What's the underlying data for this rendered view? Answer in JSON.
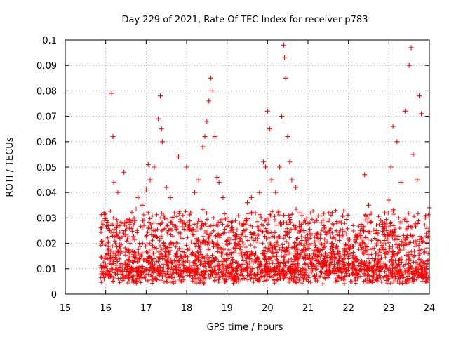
{
  "chart_data": {
    "type": "scatter",
    "title": "Day 229 of 2021, Rate Of TEC Index for receiver p783",
    "xlabel": "GPS time / hours",
    "ylabel": "ROTI / TECUs",
    "xlim": [
      15,
      24
    ],
    "ylim": [
      0,
      0.1
    ],
    "xticks": [
      "15",
      "16",
      "17",
      "18",
      "19",
      "20",
      "21",
      "22",
      "23",
      "24"
    ],
    "yticks": [
      "0",
      "0.01",
      "0.02",
      "0.03",
      "0.04",
      "0.05",
      "0.06",
      "0.07",
      "0.08",
      "0.09",
      "0.1"
    ],
    "grid": true,
    "legend": "none",
    "marker": "+",
    "color": "#ff0000",
    "series": [
      {
        "x": [
          15.9,
          16.0,
          16.1,
          16.15,
          16.18,
          16.2,
          16.3,
          16.35,
          16.45,
          16.5,
          16.6,
          16.7,
          16.8,
          16.9,
          17.0,
          17.05,
          17.1,
          17.2,
          17.3,
          17.35,
          17.38,
          17.4,
          17.5,
          17.6,
          17.7,
          17.8,
          17.9,
          18.0,
          18.1,
          18.2,
          18.3,
          18.4,
          18.45,
          18.5,
          18.55,
          18.6,
          18.65,
          18.7,
          18.75,
          18.8,
          18.9,
          19.0,
          19.1,
          19.2,
          19.3,
          19.4,
          19.5,
          19.6,
          19.7,
          19.8,
          19.9,
          19.95,
          20.0,
          20.05,
          20.1,
          20.2,
          20.3,
          20.35,
          20.4,
          20.42,
          20.45,
          20.5,
          20.55,
          20.6,
          20.7,
          20.8,
          20.9,
          21.0,
          21.1,
          21.2,
          21.3,
          21.4,
          21.5,
          21.6,
          21.7,
          21.8,
          21.9,
          22.0,
          22.1,
          22.2,
          22.3,
          22.4,
          22.5,
          22.6,
          22.7,
          22.8,
          22.9,
          23.0,
          23.05,
          23.1,
          23.2,
          23.3,
          23.4,
          23.5,
          23.55,
          23.6,
          23.7,
          23.75,
          23.8,
          23.9,
          24.0
        ],
        "y": [
          0.008,
          0.011,
          0.025,
          0.079,
          0.062,
          0.044,
          0.04,
          0.022,
          0.048,
          0.028,
          0.015,
          0.03,
          0.038,
          0.035,
          0.041,
          0.051,
          0.045,
          0.05,
          0.069,
          0.078,
          0.065,
          0.06,
          0.042,
          0.038,
          0.032,
          0.054,
          0.028,
          0.05,
          0.032,
          0.04,
          0.045,
          0.058,
          0.062,
          0.068,
          0.076,
          0.085,
          0.08,
          0.062,
          0.046,
          0.044,
          0.038,
          0.03,
          0.026,
          0.018,
          0.022,
          0.028,
          0.036,
          0.038,
          0.032,
          0.04,
          0.052,
          0.05,
          0.072,
          0.065,
          0.045,
          0.04,
          0.05,
          0.07,
          0.098,
          0.093,
          0.085,
          0.062,
          0.052,
          0.045,
          0.042,
          0.032,
          0.025,
          0.018,
          0.012,
          0.015,
          0.022,
          0.026,
          0.024,
          0.02,
          0.019,
          0.015,
          0.018,
          0.012,
          0.01,
          0.008,
          0.012,
          0.047,
          0.035,
          0.018,
          0.025,
          0.029,
          0.032,
          0.037,
          0.05,
          0.066,
          0.06,
          0.044,
          0.072,
          0.09,
          0.097,
          0.055,
          0.045,
          0.078,
          0.071,
          0.03,
          0.034
        ]
      }
    ]
  }
}
